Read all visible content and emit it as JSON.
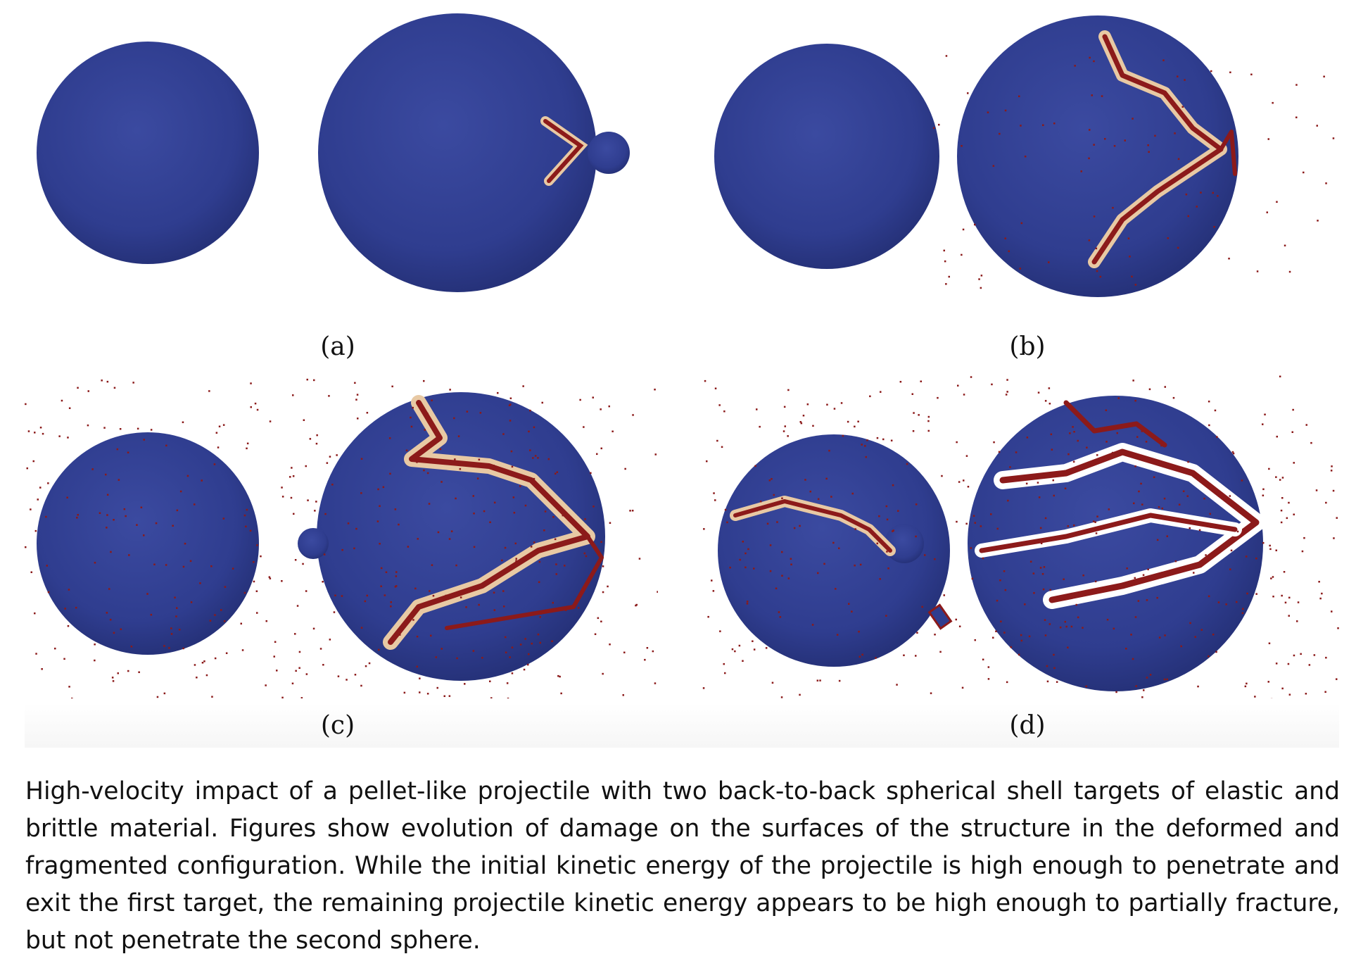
{
  "figure": {
    "panels": [
      {
        "id": "a",
        "label": "(a)"
      },
      {
        "id": "b",
        "label": "(b)"
      },
      {
        "id": "c",
        "label": "(c)"
      },
      {
        "id": "d",
        "label": "(d)"
      }
    ]
  },
  "caption": "High-velocity impact of a pellet-like projectile with two back-to-back spherical shell targets of elastic and brittle material. Figures show evolution of damage on the surfaces of the structure in the deformed and fragmented configuration. While the initial kinetic energy of the projectile is high enough to penetrate and exit the first target, the remaining projectile kinetic energy appears to be high enough to partially fracture, but not penetrate the second sphere.",
  "colors": {
    "shell": "#2f3d8f",
    "crack": "#8c1a1a",
    "crack_glow": "#e8c9a4",
    "debris": "#8b1a1a"
  }
}
